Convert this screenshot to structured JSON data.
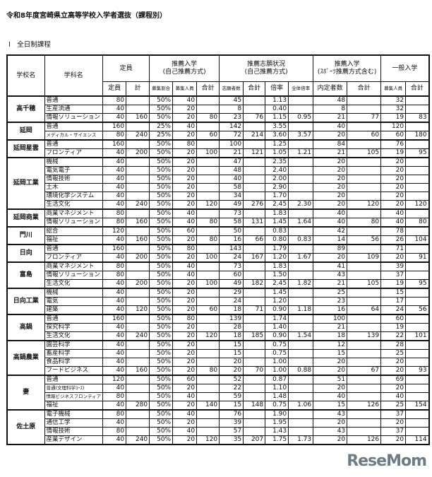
{
  "title": "令和8年度宮崎県立高等学校入学者選抜（課程別）",
  "section": "Ⅰ　全日制課程",
  "headers": {
    "school": "学校名",
    "dept": "学科名",
    "capacity": "定員",
    "recommend": "推薦入学\n(自己推薦方式)",
    "applications": "推薦志願状況\n(自己推薦方式)",
    "recommend_sports": "推薦入学\n(ｽﾎﾟｰﾂ推薦方式含む)",
    "general": "一般入学",
    "sub": [
      "定員",
      "計",
      "募集割合",
      "募集人員",
      "合計",
      "志願者数",
      "合計",
      "倍率",
      "全体倍率",
      "内定者数",
      "合計",
      "募集人員",
      "合計"
    ]
  },
  "schools": [
    {
      "name": "高千穂",
      "cap_total": "160",
      "rec_total": "80",
      "app_total": "76",
      "overall_rate": "0.95",
      "naitei_total": "77",
      "gen_total": "83",
      "depts": [
        {
          "name": "普通",
          "cap": "80",
          "pct": "50%",
          "rec": "40",
          "app": "45",
          "rate": "1.13",
          "naitei": "48",
          "gen": "32"
        },
        {
          "name": "生産流通",
          "cap": "40",
          "pct": "50%",
          "rec": "20",
          "app": "8",
          "rate": "0.40",
          "naitei": "8",
          "gen": "32"
        },
        {
          "name": "情報ソリューション",
          "cap": "40",
          "pct": "50%",
          "rec": "20",
          "app": "23",
          "rate": "1.15",
          "naitei": "21",
          "gen": "19"
        }
      ]
    },
    {
      "name": "延岡",
      "cap_total": "240",
      "rec_total": "60",
      "app_total": "214",
      "overall_rate": "3.57",
      "naitei_total": "60",
      "gen_total": "180",
      "depts": [
        {
          "name": "普通",
          "cap": "160",
          "pct": "25%",
          "rec": "40",
          "app": "142",
          "rate": "3.55",
          "naitei": "40",
          "gen": "120"
        },
        {
          "name": "メディカル・サイエンス",
          "cap": "80",
          "pct": "25%",
          "rec": "20",
          "app": "72",
          "rate": "3.60",
          "naitei": "20",
          "gen": "60"
        }
      ]
    },
    {
      "name": "延岡星雲",
      "cap_total": "200",
      "rec_total": "100",
      "app_total": "121",
      "overall_rate": "1.21",
      "naitei_total": "105",
      "gen_total": "95",
      "depts": [
        {
          "name": "普通",
          "cap": "160",
          "pct": "50%",
          "rec": "80",
          "app": "100",
          "rate": "1.25",
          "naitei": "84",
          "gen": "76"
        },
        {
          "name": "フロンティア",
          "cap": "40",
          "pct": "50%",
          "rec": "20",
          "app": "21",
          "rate": "1.05",
          "naitei": "21",
          "gen": "19"
        }
      ]
    },
    {
      "name": "延岡工業",
      "cap_total": "240",
      "rec_total": "120",
      "app_total": "276",
      "overall_rate": "2.30",
      "naitei_total": "120",
      "gen_total": "120",
      "depts": [
        {
          "name": "機械",
          "cap": "40",
          "pct": "50%",
          "rec": "20",
          "app": "47",
          "rate": "2.35",
          "naitei": "20",
          "gen": "20"
        },
        {
          "name": "電気電子",
          "cap": "40",
          "pct": "50%",
          "rec": "20",
          "app": "48",
          "rate": "2.40",
          "naitei": "20",
          "gen": "20"
        },
        {
          "name": "情報技術",
          "cap": "40",
          "pct": "50%",
          "rec": "20",
          "app": "40",
          "rate": "2.00",
          "naitei": "20",
          "gen": "20"
        },
        {
          "name": "土木",
          "cap": "40",
          "pct": "50%",
          "rec": "20",
          "app": "58",
          "rate": "2.90",
          "naitei": "20",
          "gen": "20"
        },
        {
          "name": "環境化学システム",
          "cap": "40",
          "pct": "50%",
          "rec": "20",
          "app": "34",
          "rate": "1.70",
          "naitei": "20",
          "gen": "20"
        },
        {
          "name": "生活文化",
          "cap": "40",
          "pct": "50%",
          "rec": "20",
          "app": "49",
          "rate": "2.45",
          "naitei": "20",
          "gen": "20"
        }
      ]
    },
    {
      "name": "延岡商業",
      "cap_total": "160",
      "rec_total": "80",
      "app_total": "131",
      "overall_rate": "1.64",
      "naitei_total": "80",
      "gen_total": "80",
      "depts": [
        {
          "name": "商業マネジメント",
          "cap": "80",
          "pct": "50%",
          "rec": "40",
          "app": "73",
          "rate": "1.83",
          "naitei": "40",
          "gen": "40"
        },
        {
          "name": "情報ソリューション",
          "cap": "80",
          "pct": "50%",
          "rec": "40",
          "app": "58",
          "rate": "1.45",
          "naitei": "40",
          "gen": "40"
        }
      ]
    },
    {
      "name": "門川",
      "cap_total": "160",
      "rec_total": "80",
      "app_total": "66",
      "overall_rate": "0.83",
      "naitei_total": "56",
      "gen_total": "104",
      "depts": [
        {
          "name": "総合",
          "cap": "120",
          "pct": "50%",
          "rec": "60",
          "app": "50",
          "rate": "0.83",
          "naitei": "42",
          "gen": "78"
        },
        {
          "name": "福祉",
          "cap": "40",
          "pct": "50%",
          "rec": "20",
          "app": "16",
          "rate": "0.80",
          "naitei": "14",
          "gen": "26"
        }
      ]
    },
    {
      "name": "日向",
      "cap_total": "200",
      "rec_total": "100",
      "app_total": "167",
      "overall_rate": "1.67",
      "naitei_total": "109",
      "gen_total": "91",
      "depts": [
        {
          "name": "普通",
          "cap": "160",
          "pct": "50%",
          "rec": "80",
          "app": "143",
          "rate": "1.79",
          "naitei": "89",
          "gen": "71"
        },
        {
          "name": "フロンティア",
          "cap": "40",
          "pct": "50%",
          "rec": "20",
          "app": "24",
          "rate": "1.20",
          "naitei": "20",
          "gen": "20"
        }
      ]
    },
    {
      "name": "富島",
      "cap_total": "200",
      "rec_total": "100",
      "app_total": "182",
      "overall_rate": "1.82",
      "naitei_total": "105",
      "gen_total": "95",
      "depts": [
        {
          "name": "商業マネジメント",
          "cap": "80",
          "pct": "50%",
          "rec": "40",
          "app": "73",
          "rate": "1.83",
          "naitei": "41",
          "gen": "39"
        },
        {
          "name": "情報ソリューション",
          "cap": "80",
          "pct": "50%",
          "rec": "40",
          "app": "60",
          "rate": "1.50",
          "naitei": "43",
          "gen": "37"
        },
        {
          "name": "生活文化",
          "cap": "40",
          "pct": "50%",
          "rec": "20",
          "app": "49",
          "rate": "2.45",
          "naitei": "21",
          "gen": "19"
        }
      ]
    },
    {
      "name": "日向工業",
      "cap_total": "120",
      "rec_total": "60",
      "app_total": "71",
      "overall_rate": "1.18",
      "naitei_total": "64",
      "gen_total": "56",
      "depts": [
        {
          "name": "機械",
          "cap": "40",
          "pct": "50%",
          "rec": "20",
          "app": "29",
          "rate": "1.45",
          "naitei": "25",
          "gen": "15"
        },
        {
          "name": "電気",
          "cap": "40",
          "pct": "50%",
          "rec": "20",
          "app": "24",
          "rate": "1.20",
          "naitei": "23",
          "gen": "17"
        },
        {
          "name": "建築",
          "cap": "40",
          "pct": "50%",
          "rec": "20",
          "app": "18",
          "rate": "0.90",
          "naitei": "16",
          "gen": "24"
        }
      ]
    },
    {
      "name": "高鍋",
      "cap_total": "240",
      "rec_total": "120",
      "app_total": "185",
      "overall_rate": "1.54",
      "naitei_total": "139",
      "gen_total": "101",
      "depts": [
        {
          "name": "普通",
          "cap": "160",
          "pct": "50%",
          "rec": "80",
          "app": "139",
          "rate": "1.74",
          "naitei": "100",
          "gen": "60"
        },
        {
          "name": "探究科学",
          "cap": "40",
          "pct": "50%",
          "rec": "20",
          "app": "28",
          "rate": "1.40",
          "naitei": "21",
          "gen": "19"
        },
        {
          "name": "生活文化",
          "cap": "40",
          "pct": "50%",
          "rec": "20",
          "app": "18",
          "rate": "0.90",
          "naitei": "18",
          "gen": "22"
        }
      ]
    },
    {
      "name": "高鍋農業",
      "cap_total": "160",
      "rec_total": "80",
      "app_total": "70",
      "overall_rate": "0.88",
      "naitei_total": "67",
      "gen_total": "93",
      "depts": [
        {
          "name": "園芸科学",
          "cap": "40",
          "pct": "50%",
          "rec": "20",
          "app": "15",
          "rate": "0.75",
          "naitei": "12",
          "gen": "28"
        },
        {
          "name": "畜産科学",
          "cap": "40",
          "pct": "50%",
          "rec": "20",
          "app": "15",
          "rate": "0.75",
          "naitei": "15",
          "gen": "25"
        },
        {
          "name": "食品科学",
          "cap": "40",
          "pct": "50%",
          "rec": "20",
          "app": "20",
          "rate": "1.00",
          "naitei": "20",
          "gen": "20"
        },
        {
          "name": "フードビジネス",
          "cap": "40",
          "pct": "50%",
          "rec": "20",
          "app": "20",
          "rate": "1.00",
          "naitei": "20",
          "gen": "20"
        }
      ]
    },
    {
      "name": "妻",
      "cap_total": "280",
      "rec_total": "140",
      "app_total": "148",
      "overall_rate": "1.06",
      "naitei_total": "126",
      "gen_total": "154",
      "depts": [
        {
          "name": "普通",
          "cap": "120",
          "pct": "50%",
          "rec": "60",
          "app": "52",
          "rate": "0.87",
          "naitei": "51",
          "gen": "69"
        },
        {
          "name": "普通(文理科学ｺｰｽ)",
          "cap": "40",
          "pct": "50%",
          "rec": "20",
          "app": "22",
          "rate": "1.10",
          "naitei": "20",
          "gen": "20"
        },
        {
          "name": "情報ビジネスフロンティア",
          "cap": "80",
          "pct": "50%",
          "rec": "40",
          "app": "59",
          "rate": "1.48",
          "naitei": "40",
          "gen": "40"
        },
        {
          "name": "福祉",
          "cap": "40",
          "pct": "50%",
          "rec": "20",
          "app": "15",
          "rate": "0.75",
          "naitei": "15",
          "gen": "25"
        }
      ]
    },
    {
      "name": "佐土原",
      "cap_total": "240",
      "rec_total": "120",
      "app_total": "207",
      "overall_rate": "1.73",
      "naitei_total": "126",
      "gen_total": "114",
      "depts": [
        {
          "name": "電子機械",
          "cap": "80",
          "pct": "50%",
          "rec": "40",
          "app": "76",
          "rate": "1.90",
          "naitei": "43",
          "gen": "37"
        },
        {
          "name": "通信工学",
          "cap": "40",
          "pct": "50%",
          "rec": "20",
          "app": "39",
          "rate": "1.95",
          "naitei": "20",
          "gen": "20"
        },
        {
          "name": "情報技術",
          "cap": "80",
          "pct": "50%",
          "rec": "40",
          "app": "57",
          "rate": "1.43",
          "naitei": "43",
          "gen": "37"
        },
        {
          "name": "産業デザイン",
          "cap": "40",
          "pct": "50%",
          "rec": "20",
          "app": "35",
          "rate": "1.75",
          "naitei": "20",
          "gen": "20"
        }
      ]
    }
  ],
  "watermark": "ReseMom"
}
